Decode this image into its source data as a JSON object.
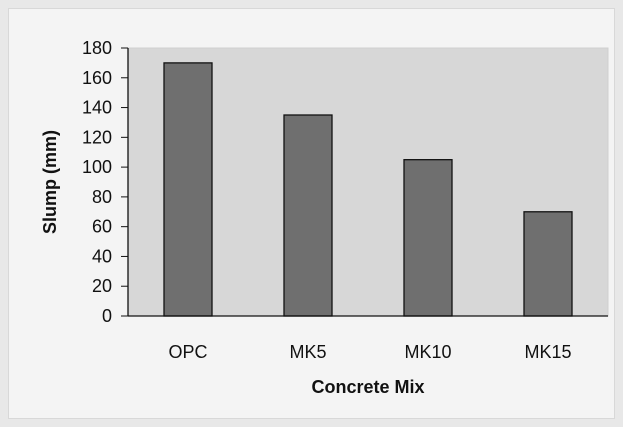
{
  "chart_data": {
    "type": "bar",
    "categories": [
      "OPC",
      "MK5",
      "MK10",
      "MK15"
    ],
    "values": [
      170,
      135,
      105,
      70
    ],
    "xlabel": "Concrete Mix",
    "ylabel": "Slump (mm)",
    "ylim": [
      0,
      180
    ],
    "y_ticks": [
      0,
      20,
      40,
      60,
      80,
      100,
      120,
      140,
      160,
      180
    ],
    "grid": false,
    "legend": "none",
    "colors": {
      "plot_background": "#d7d7d7",
      "bar_fill": "#6f6f6f",
      "bar_stroke": "#111111",
      "axis": "#111111"
    }
  }
}
